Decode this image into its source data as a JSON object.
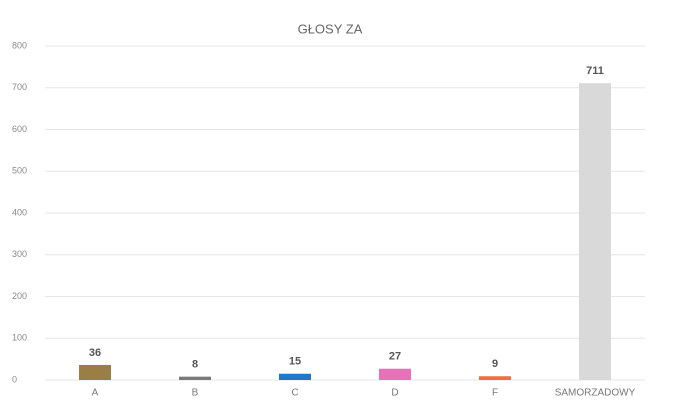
{
  "chart_data": {
    "type": "bar",
    "title": "GŁOSY ZA",
    "categories": [
      "A",
      "B",
      "C",
      "D",
      "F",
      "SAMORZADOWY"
    ],
    "values": [
      36,
      8,
      15,
      27,
      9,
      711
    ],
    "colors": [
      "#9b7e46",
      "#7a7a7a",
      "#1f78c8",
      "#e872b8",
      "#ee6f3f",
      "#d9d9d9"
    ],
    "ylim": [
      0,
      800
    ],
    "yticks": [
      0,
      100,
      200,
      300,
      400,
      500,
      600,
      700,
      800
    ],
    "grid": true,
    "data_labels": true
  }
}
